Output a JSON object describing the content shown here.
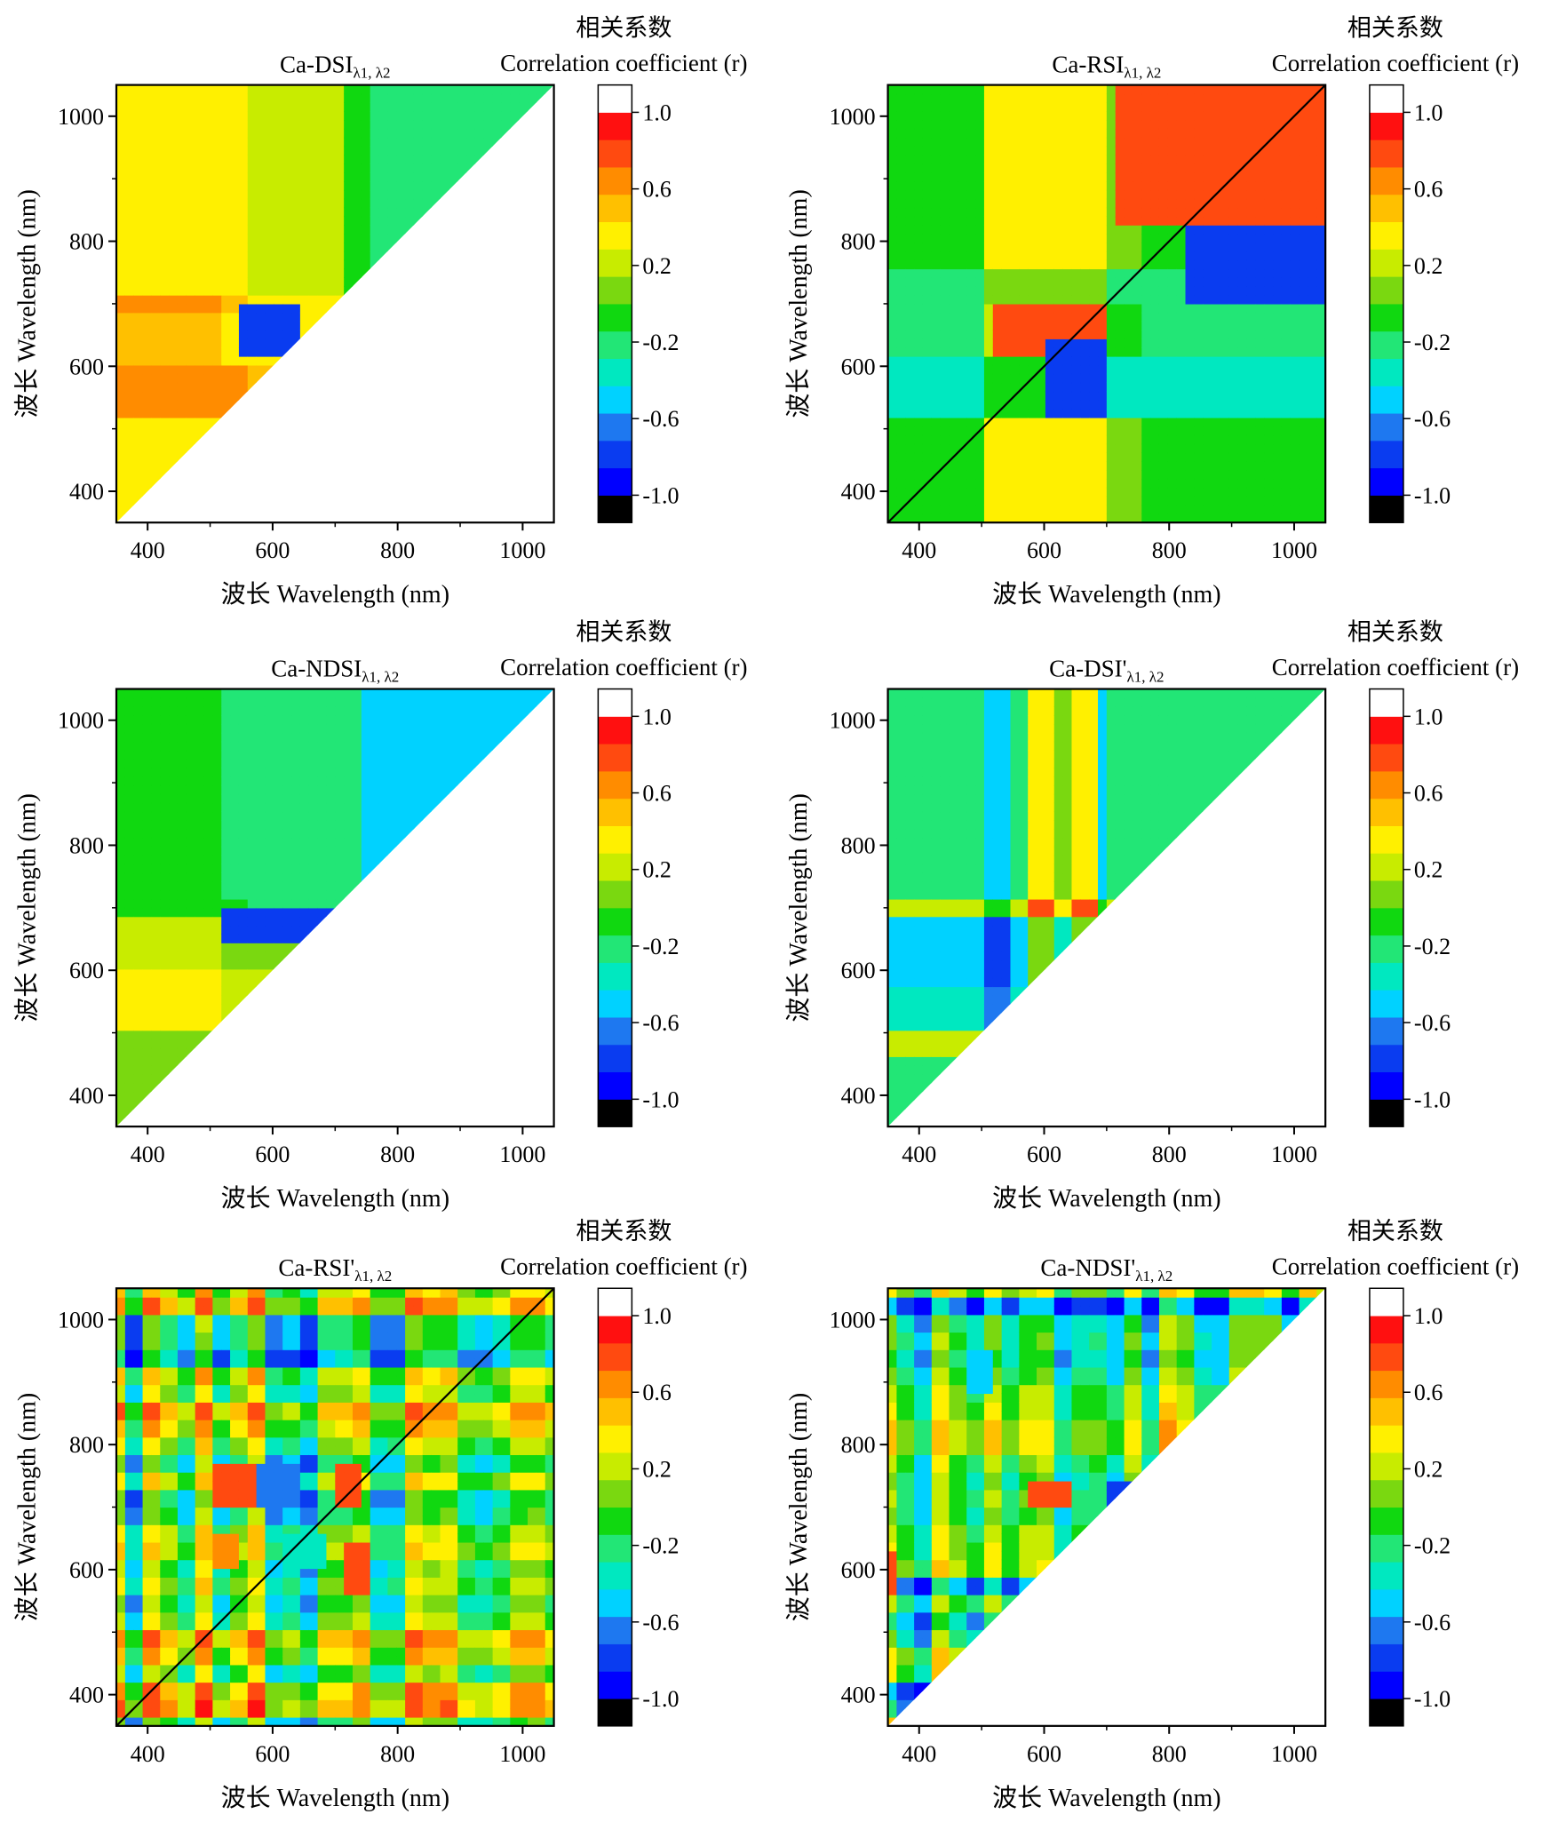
{
  "colors": {
    "scale": [
      "#000000",
      "#0000ff",
      "#0a3cf0",
      "#1e78f0",
      "#00d2ff",
      "#00e8c0",
      "#22e676",
      "#10d810",
      "#7ad810",
      "#c8ec00",
      "#fff000",
      "#ffc000",
      "#ff8c00",
      "#ff4a10",
      "#ff1010",
      "#ffffff"
    ],
    "frame": "#000000",
    "empty": "#ffffff"
  },
  "chart_data": [
    {
      "type": "heatmap",
      "title_main": "Ca-DSI",
      "title_sub": "λ1, λ2",
      "xlabel": "波长 Wavelength (nm)",
      "ylabel": "波长 Wavelength (nm)",
      "xlim": [
        350,
        1050
      ],
      "ylim": [
        350,
        1050
      ],
      "xticks": [
        400,
        600,
        800,
        1000
      ],
      "yticks": [
        400,
        600,
        800,
        1000
      ],
      "triangle": "upper-left",
      "diagonal_line": false,
      "colorbar": {
        "title_cn": "相关系数",
        "title_en": "Correlation coefficient (r)",
        "ticks": [
          "1.0",
          "0.6",
          "0.2",
          "-0.2",
          "-0.6",
          "-1.0"
        ],
        "range": [
          -1.0,
          1.0
        ]
      },
      "pattern": {
        "columns": [
          [
            350,
            520,
            0.45
          ],
          [
            520,
            560,
            0.4
          ],
          [
            560,
            700,
            0.15
          ],
          [
            700,
            720,
            0.1
          ],
          [
            720,
            760,
            -0.55
          ],
          [
            760,
            1050,
            -0.85
          ]
        ],
        "rows": [
          [
            350,
            420,
            0.15
          ],
          [
            420,
            520,
            0.3
          ],
          [
            520,
            600,
            0.75
          ],
          [
            600,
            690,
            0.45
          ],
          [
            690,
            720,
            0.7
          ],
          [
            720,
            1050,
            0.35
          ]
        ],
        "blobs": [
          [
            540,
            640,
            620,
            700,
            -0.85
          ]
        ]
      }
    },
    {
      "type": "heatmap",
      "title_main": "Ca-RSI",
      "title_sub": "λ1, λ2",
      "xlabel": "波长 Wavelength (nm)",
      "ylabel": "波长 Wavelength (nm)",
      "xlim": [
        350,
        1050
      ],
      "ylim": [
        350,
        1050
      ],
      "xticks": [
        400,
        600,
        800,
        1000
      ],
      "yticks": [
        400,
        600,
        800,
        1000
      ],
      "triangle": "full",
      "diagonal_line": true,
      "colorbar": {
        "title_cn": "相关系数",
        "title_en": "Correlation coefficient (r)",
        "ticks": [
          "1.0",
          "0.6",
          "0.2",
          "-0.2",
          "-0.6",
          "-1.0"
        ],
        "range": [
          -1.0,
          1.0
        ]
      },
      "pattern": {
        "columns": [
          [
            350,
            500,
            -0.05
          ],
          [
            500,
            700,
            0.6
          ],
          [
            700,
            760,
            0.05
          ],
          [
            760,
            1050,
            -0.05
          ]
        ],
        "rows": [
          [
            350,
            520,
            0.0
          ],
          [
            520,
            620,
            -0.65
          ],
          [
            620,
            700,
            -0.3
          ],
          [
            700,
            760,
            -0.45
          ],
          [
            760,
            1050,
            0.0
          ]
        ],
        "blobs": [
          [
            720,
            1050,
            820,
            1050,
            0.85
          ],
          [
            820,
            1050,
            700,
            820,
            -0.85
          ],
          [
            520,
            700,
            620,
            700,
            0.8
          ],
          [
            600,
            700,
            520,
            640,
            -0.85
          ]
        ]
      }
    },
    {
      "type": "heatmap",
      "title_main": "Ca-NDSI",
      "title_sub": "λ1, λ2",
      "xlabel": "波长 Wavelength (nm)",
      "ylabel": "波长 Wavelength (nm)",
      "xlim": [
        350,
        1050
      ],
      "ylim": [
        350,
        1050
      ],
      "xticks": [
        400,
        600,
        800,
        1000
      ],
      "yticks": [
        400,
        600,
        800,
        1000
      ],
      "triangle": "upper-left",
      "diagonal_line": false,
      "colorbar": {
        "title_cn": "相关系数",
        "title_en": "Correlation coefficient (r)",
        "ticks": [
          "1.0",
          "0.6",
          "0.2",
          "-0.2",
          "-0.6",
          "-1.0"
        ],
        "range": [
          -1.0,
          1.0
        ]
      },
      "pattern": {
        "columns": [
          [
            350,
            520,
            -0.05
          ],
          [
            520,
            560,
            -0.2
          ],
          [
            560,
            700,
            -0.4
          ],
          [
            700,
            740,
            -0.45
          ],
          [
            740,
            1050,
            -0.85
          ]
        ],
        "rows": [
          [
            350,
            420,
            0.05
          ],
          [
            420,
            500,
            0.1
          ],
          [
            500,
            600,
            0.7
          ],
          [
            600,
            690,
            0.45
          ],
          [
            690,
            720,
            -0.05
          ],
          [
            720,
            1050,
            -0.1
          ]
        ],
        "blobs": [
          [
            520,
            700,
            640,
            700,
            -0.85
          ]
        ]
      }
    },
    {
      "type": "heatmap",
      "title_main": "Ca-DSI'",
      "title_sub": "λ1, λ2",
      "xlabel": "波长 Wavelength (nm)",
      "ylabel": "波长 Wavelength (nm)",
      "xlim": [
        350,
        1050
      ],
      "ylim": [
        350,
        1050
      ],
      "xticks": [
        400,
        600,
        800,
        1000
      ],
      "yticks": [
        400,
        600,
        800,
        1000
      ],
      "triangle": "upper-left",
      "diagonal_line": false,
      "colorbar": {
        "title_cn": "相关系数",
        "title_en": "Correlation coefficient (r)",
        "ticks": [
          "1.0",
          "0.6",
          "0.2",
          "-0.2",
          "-0.6",
          "-1.0"
        ],
        "range": [
          -1.0,
          1.0
        ]
      },
      "pattern": {
        "columns": [
          [
            350,
            500,
            -0.35
          ],
          [
            500,
            540,
            -0.85
          ],
          [
            540,
            570,
            -0.3
          ],
          [
            570,
            620,
            0.75
          ],
          [
            620,
            640,
            0.1
          ],
          [
            640,
            680,
            0.7
          ],
          [
            680,
            700,
            -0.85
          ],
          [
            700,
            720,
            -0.2
          ],
          [
            720,
            1050,
            -0.3
          ]
        ],
        "rows": [
          [
            350,
            460,
            -0.1
          ],
          [
            460,
            500,
            0.8
          ],
          [
            500,
            580,
            -0.3
          ],
          [
            580,
            690,
            -0.7
          ],
          [
            690,
            720,
            0.75
          ],
          [
            720,
            1050,
            -0.1
          ]
        ],
        "blobs": []
      }
    },
    {
      "type": "heatmap",
      "title_main": "Ca-RSI'",
      "title_sub": "λ1, λ2",
      "xlabel": "波长 Wavelength (nm)",
      "ylabel": "波长 Wavelength (nm)",
      "xlim": [
        350,
        1050
      ],
      "ylim": [
        350,
        1050
      ],
      "xticks": [
        400,
        600,
        800,
        1000
      ],
      "yticks": [
        400,
        600,
        800,
        1000
      ],
      "triangle": "full",
      "diagonal_line": true,
      "colorbar": {
        "title_cn": "相关系数",
        "title_en": "Correlation coefficient (r)",
        "ticks": [
          "1.0",
          "0.6",
          "0.2",
          "-0.2",
          "-0.6",
          "-1.0"
        ],
        "range": [
          -1.0,
          1.0
        ]
      },
      "pattern": {
        "columns": [
          [
            350,
            1050,
            0.0
          ]
        ],
        "rows": [
          [
            350,
            1050,
            0.0
          ]
        ],
        "noise": true,
        "blobs": [
          [
            500,
            570,
            700,
            770,
            0.8
          ],
          [
            570,
            640,
            700,
            770,
            -0.7
          ],
          [
            700,
            740,
            700,
            770,
            0.8
          ],
          [
            720,
            760,
            560,
            650,
            0.85
          ],
          [
            500,
            540,
            600,
            660,
            0.6
          ],
          [
            620,
            680,
            600,
            660,
            -0.4
          ]
        ]
      }
    },
    {
      "type": "heatmap",
      "title_main": "Ca-NDSI'",
      "title_sub": "λ1, λ2",
      "xlabel": "波长 Wavelength (nm)",
      "ylabel": "波长 Wavelength (nm)",
      "xlim": [
        350,
        1050
      ],
      "ylim": [
        350,
        1050
      ],
      "xticks": [
        400,
        600,
        800,
        1000
      ],
      "yticks": [
        400,
        600,
        800,
        1000
      ],
      "triangle": "upper-left",
      "diagonal_line": false,
      "colorbar": {
        "title_cn": "相关系数",
        "title_en": "Correlation coefficient (r)",
        "ticks": [
          "1.0",
          "0.6",
          "0.2",
          "-0.2",
          "-0.6",
          "-1.0"
        ],
        "range": [
          -1.0,
          1.0
        ]
      },
      "pattern": {
        "columns": [
          [
            350,
            1050,
            -0.15
          ]
        ],
        "rows": [
          [
            350,
            1050,
            -0.15
          ]
        ],
        "noise": true,
        "blobs": [
          [
            570,
            640,
            700,
            740,
            0.85
          ],
          [
            700,
            740,
            700,
            740,
            -0.75
          ],
          [
            350,
            370,
            560,
            630,
            0.8
          ],
          [
            470,
            520,
            880,
            950,
            -0.45
          ]
        ]
      }
    }
  ]
}
